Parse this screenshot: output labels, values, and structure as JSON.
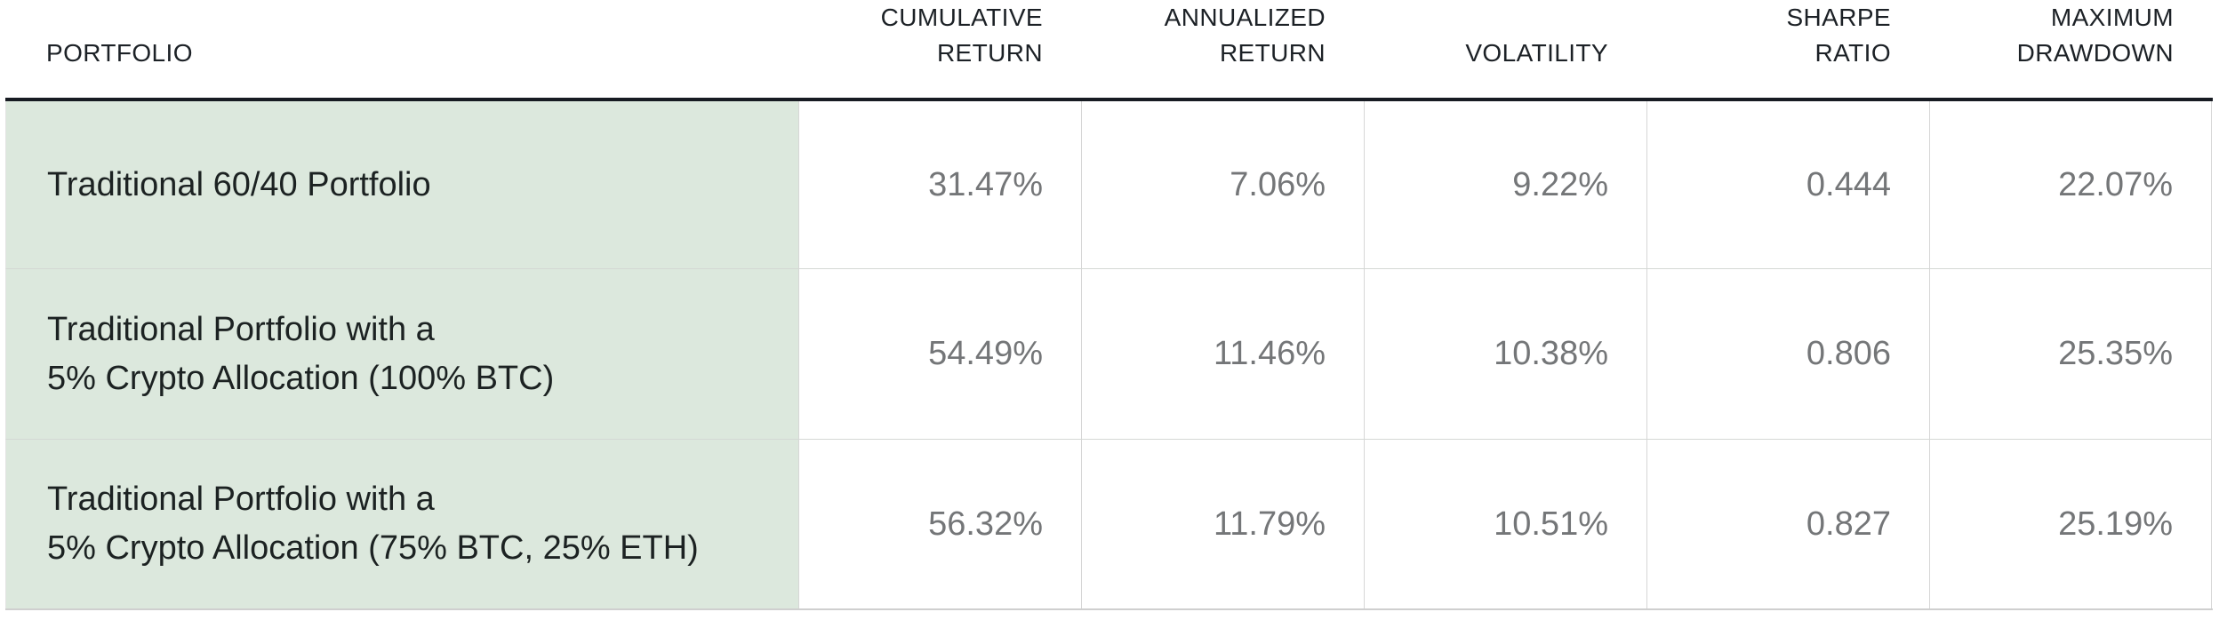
{
  "table": {
    "headers": [
      {
        "label": "PORTFOLIO"
      },
      {
        "label": "CUMULATIVE\nRETURN"
      },
      {
        "label": "ANNUALIZED\nRETURN"
      },
      {
        "label": "VOLATILITY"
      },
      {
        "label": "SHARPE\nRATIO"
      },
      {
        "label": "MAXIMUM\nDRAWDOWN"
      }
    ],
    "rows": [
      {
        "portfolio": "Traditional 60/40 Portfolio",
        "cumulative_return": "31.47%",
        "annualized_return": "7.06%",
        "volatility": "9.22%",
        "sharpe_ratio": "0.444",
        "maximum_drawdown": "22.07%"
      },
      {
        "portfolio": "Traditional Portfolio with a\n5% Crypto Allocation (100% BTC)",
        "cumulative_return": "54.49%",
        "annualized_return": "11.46%",
        "volatility": "10.38%",
        "sharpe_ratio": "0.806",
        "maximum_drawdown": "25.35%"
      },
      {
        "portfolio": "Traditional Portfolio with a\n5% Crypto Allocation (75% BTC, 25% ETH)",
        "cumulative_return": "56.32%",
        "annualized_return": "11.79%",
        "volatility": "10.51%",
        "sharpe_ratio": "0.827",
        "maximum_drawdown": "25.19%"
      }
    ]
  },
  "colors": {
    "portfolio_cell_background": "#dce8dd",
    "header_rule": "#171b22",
    "header_text": "#1c2126",
    "label_text": "#1c2222",
    "value_text": "#747678",
    "cell_border": "#d6d6d6",
    "table_bottom_border": "#cfcfcf",
    "page_background": "#ffffff"
  },
  "chart_data": {
    "type": "table",
    "columns": [
      "Portfolio",
      "Cumulative Return",
      "Annualized Return",
      "Volatility",
      "Sharpe Ratio",
      "Maximum Drawdown"
    ],
    "rows": [
      [
        "Traditional 60/40 Portfolio",
        "31.47%",
        "7.06%",
        "9.22%",
        "0.444",
        "22.07%"
      ],
      [
        "Traditional Portfolio with a 5% Crypto Allocation (100% BTC)",
        "54.49%",
        "11.46%",
        "10.38%",
        "0.806",
        "25.35%"
      ],
      [
        "Traditional Portfolio with a 5% Crypto Allocation (75% BTC, 25% ETH)",
        "56.32%",
        "11.79%",
        "10.51%",
        "0.827",
        "25.19%"
      ]
    ],
    "notes": {
      "cumulative_return_values": [
        31.47,
        54.49,
        56.32
      ],
      "annualized_return_values": [
        7.06,
        11.46,
        11.79
      ],
      "volatility_values": [
        9.22,
        10.38,
        10.51
      ],
      "sharpe_ratio_values": [
        0.444,
        0.806,
        0.827
      ],
      "maximum_drawdown_values": [
        22.07,
        25.35,
        25.19
      ]
    }
  }
}
